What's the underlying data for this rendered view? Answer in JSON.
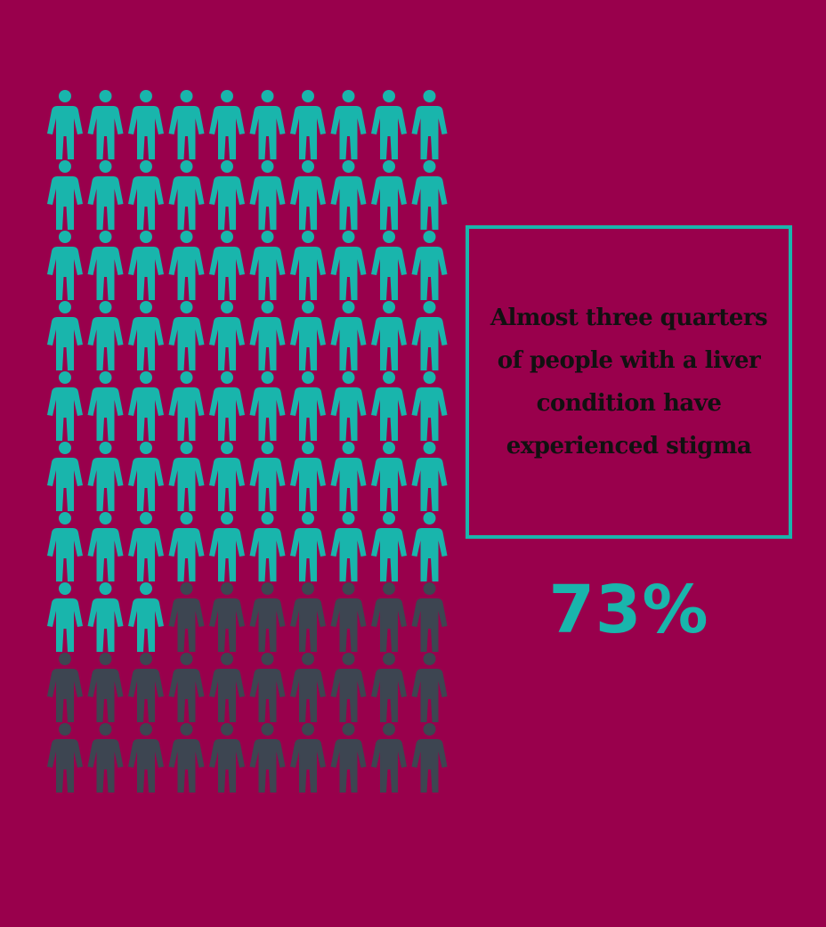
{
  "chart_data": {
    "type": "pictogram",
    "total": 100,
    "columns": 10,
    "rows": 10,
    "highlighted": 73,
    "value_label": "73%",
    "caption": "Almost three quarters of people with a liver condition have experienced stigma"
  },
  "colors": {
    "background": "#99004c",
    "highlight": "#19b5ac",
    "rest": "#3d4551",
    "text": "#111111",
    "box_border": "#19b5ac"
  },
  "icons": {
    "figure": "person-icon"
  }
}
